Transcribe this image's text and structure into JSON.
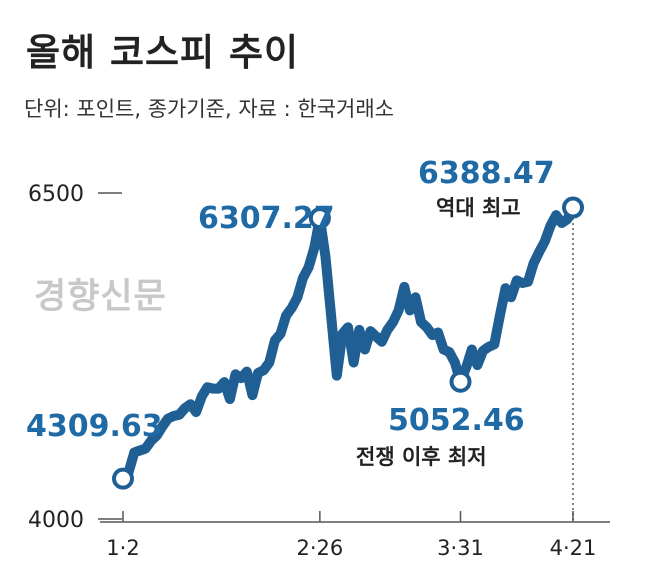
{
  "title": "올해 코스피 추이",
  "subtitle": "단위: 포인트, 종가기준, 자료 : 한국거래소",
  "watermark": "경향신문",
  "colors": {
    "line": "#1f5f94",
    "value_label": "#1f6aa5",
    "text": "#222222",
    "axis": "#555555"
  },
  "chart_data": {
    "type": "line",
    "ylim": [
      4000,
      6500
    ],
    "y_ticks": [
      "6500",
      "4000"
    ],
    "x_ticks": [
      "1·2",
      "2·26",
      "3·31",
      "4·21"
    ],
    "annotations": [
      {
        "value": "4309.63",
        "caption": ""
      },
      {
        "value": "6307.27",
        "caption": ""
      },
      {
        "value": "5052.46",
        "caption": "전쟁 이후 최저"
      },
      {
        "value": "6388.47",
        "caption": "역대 최고"
      }
    ],
    "values": [
      4309.63,
      4360,
      4510,
      4525,
      4540,
      4600,
      4640,
      4710,
      4770,
      4790,
      4800,
      4850,
      4880,
      4820,
      4940,
      5010,
      5000,
      5000,
      5050,
      4920,
      5110,
      5080,
      5130,
      4950,
      5120,
      5140,
      5200,
      5370,
      5420,
      5560,
      5620,
      5700,
      5850,
      5930,
      6080,
      6307.27,
      6010,
      5560,
      5100,
      5420,
      5470,
      5200,
      5450,
      5300,
      5440,
      5400,
      5360,
      5450,
      5510,
      5600,
      5780,
      5600,
      5700,
      5510,
      5470,
      5410,
      5430,
      5300,
      5280,
      5200,
      5052.46,
      5160,
      5300,
      5180,
      5290,
      5320,
      5340,
      5560,
      5770,
      5700,
      5830,
      5810,
      5820,
      5960,
      6050,
      6130,
      6250,
      6330,
      6270,
      6300,
      6388.47
    ]
  }
}
